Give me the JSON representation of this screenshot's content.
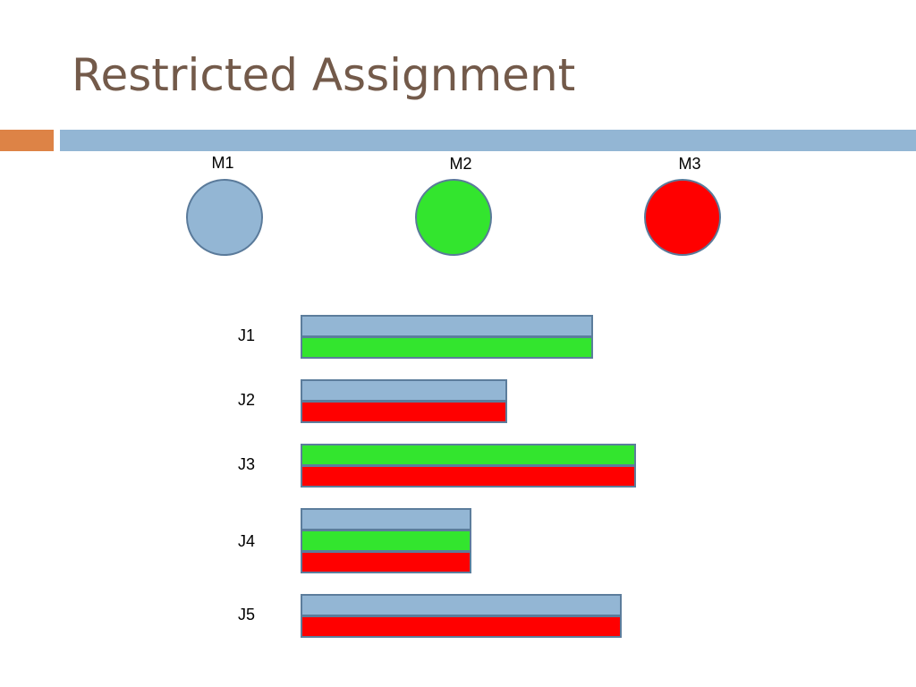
{
  "title": "Restricted Assignment",
  "colors": {
    "title": "#735a4a",
    "accent_orange": "#dd8346",
    "accent_blue": "#93b6d4",
    "outline": "#5c7d9c"
  },
  "machines": [
    {
      "id": "m1",
      "label": "M1",
      "color": "#93b6d4"
    },
    {
      "id": "m2",
      "label": "M2",
      "color": "#33e52e"
    },
    {
      "id": "m3",
      "label": "M3",
      "color": "#ff0000"
    }
  ],
  "jobs": [
    {
      "id": "j1",
      "label": "J1",
      "length": 327,
      "machines": [
        "M1",
        "M2"
      ]
    },
    {
      "id": "j2",
      "label": "J2",
      "length": 231,
      "machines": [
        "M1",
        "M3"
      ]
    },
    {
      "id": "j3",
      "label": "J3",
      "length": 375,
      "machines": [
        "M2",
        "M3"
      ]
    },
    {
      "id": "j4",
      "label": "J4",
      "length": 191,
      "machines": [
        "M1",
        "M2",
        "M3"
      ]
    },
    {
      "id": "j5",
      "label": "J5",
      "length": 359,
      "machines": [
        "M1",
        "M3"
      ]
    }
  ]
}
